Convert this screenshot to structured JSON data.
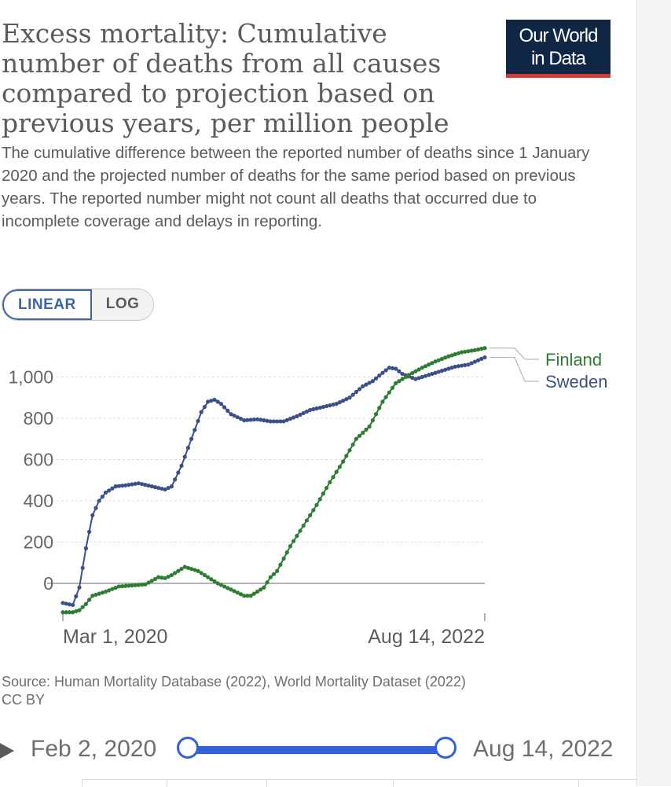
{
  "title": "Excess mortality: Cumulative number of deaths from all causes compared to projection based on previous years, per million people",
  "subtitle": "The cumulative difference between the reported number of deaths since 1 January 2020 and the projected number of deaths for the same period based on previous years. The reported number might not count all deaths that occurred due to incomplete coverage and delays in reporting.",
  "logo": {
    "line1": "Our World",
    "line2": "in Data"
  },
  "scale_toggle": {
    "linear": "LINEAR",
    "log": "LOG",
    "selected": "LINEAR"
  },
  "source": "Source: Human Mortality Database (2022), World Mortality Dataset (2022)",
  "license": "CC BY",
  "timeline": {
    "start_label": "Feb 2, 2020",
    "end_label": "Aug 14, 2022"
  },
  "colors": {
    "sweden": "#3d4f8a",
    "finland": "#2d7d32",
    "grid": "#dcdcdc",
    "text": "#5b5b5b"
  },
  "chart_data": {
    "type": "line",
    "title": "Excess mortality: Cumulative number of deaths from all causes compared to projection based on previous years, per million people",
    "xlabel": "",
    "ylabel": "",
    "x_tick_labels": [
      "Mar 1, 2020",
      "Aug 14, 2022"
    ],
    "y_ticks": [
      0,
      200,
      400,
      600,
      800,
      1000
    ],
    "y_tick_labels": [
      "0",
      "200",
      "400",
      "600",
      "800",
      "1,000"
    ],
    "ylim": [
      -150,
      1150
    ],
    "xlim": [
      "2020-03-01",
      "2022-08-14"
    ],
    "grid": "horizontal dashed",
    "legend": "right, end of lines",
    "series": [
      {
        "name": "Sweden",
        "x": [
          "2020-03-01",
          "2020-03-22",
          "2020-04-05",
          "2020-04-19",
          "2020-05-03",
          "2020-05-17",
          "2020-05-31",
          "2020-06-21",
          "2020-07-12",
          "2020-08-09",
          "2020-09-06",
          "2020-10-04",
          "2020-10-18",
          "2020-11-08",
          "2020-11-29",
          "2020-12-20",
          "2021-01-03",
          "2021-01-17",
          "2021-01-31",
          "2021-02-21",
          "2021-03-21",
          "2021-04-18",
          "2021-05-16",
          "2021-06-13",
          "2021-07-11",
          "2021-08-08",
          "2021-09-05",
          "2021-10-03",
          "2021-10-31",
          "2021-11-28",
          "2021-12-19",
          "2022-01-09",
          "2022-01-23",
          "2022-02-06",
          "2022-02-20",
          "2022-03-20",
          "2022-04-17",
          "2022-05-15",
          "2022-06-12",
          "2022-07-10",
          "2022-08-14"
        ],
        "values": [
          -95,
          -105,
          -20,
          170,
          330,
          400,
          440,
          470,
          475,
          485,
          470,
          455,
          470,
          570,
          700,
          830,
          880,
          890,
          870,
          820,
          790,
          795,
          785,
          785,
          810,
          840,
          855,
          870,
          900,
          955,
          980,
          1020,
          1045,
          1040,
          1015,
          990,
          1010,
          1030,
          1050,
          1060,
          1095
        ]
      },
      {
        "name": "Finland",
        "x": [
          "2020-03-01",
          "2020-03-22",
          "2020-04-05",
          "2020-04-19",
          "2020-05-03",
          "2020-05-31",
          "2020-06-28",
          "2020-07-26",
          "2020-08-23",
          "2020-09-20",
          "2020-10-04",
          "2020-10-18",
          "2020-11-15",
          "2020-12-13",
          "2021-01-03",
          "2021-01-24",
          "2021-02-21",
          "2021-03-21",
          "2021-04-04",
          "2021-04-18",
          "2021-05-02",
          "2021-05-16",
          "2021-05-30",
          "2021-06-13",
          "2021-06-27",
          "2021-07-25",
          "2021-08-22",
          "2021-09-19",
          "2021-10-17",
          "2021-11-14",
          "2021-12-12",
          "2022-01-09",
          "2022-02-06",
          "2022-03-06",
          "2022-04-03",
          "2022-05-01",
          "2022-05-29",
          "2022-06-26",
          "2022-07-24",
          "2022-08-14"
        ],
        "values": [
          -140,
          -140,
          -130,
          -100,
          -60,
          -40,
          -15,
          -10,
          -5,
          30,
          25,
          40,
          80,
          60,
          30,
          0,
          -30,
          -60,
          -60,
          -40,
          -20,
          30,
          60,
          120,
          180,
          280,
          380,
          490,
          590,
          700,
          760,
          880,
          970,
          1010,
          1045,
          1075,
          1100,
          1120,
          1130,
          1140
        ]
      }
    ]
  }
}
